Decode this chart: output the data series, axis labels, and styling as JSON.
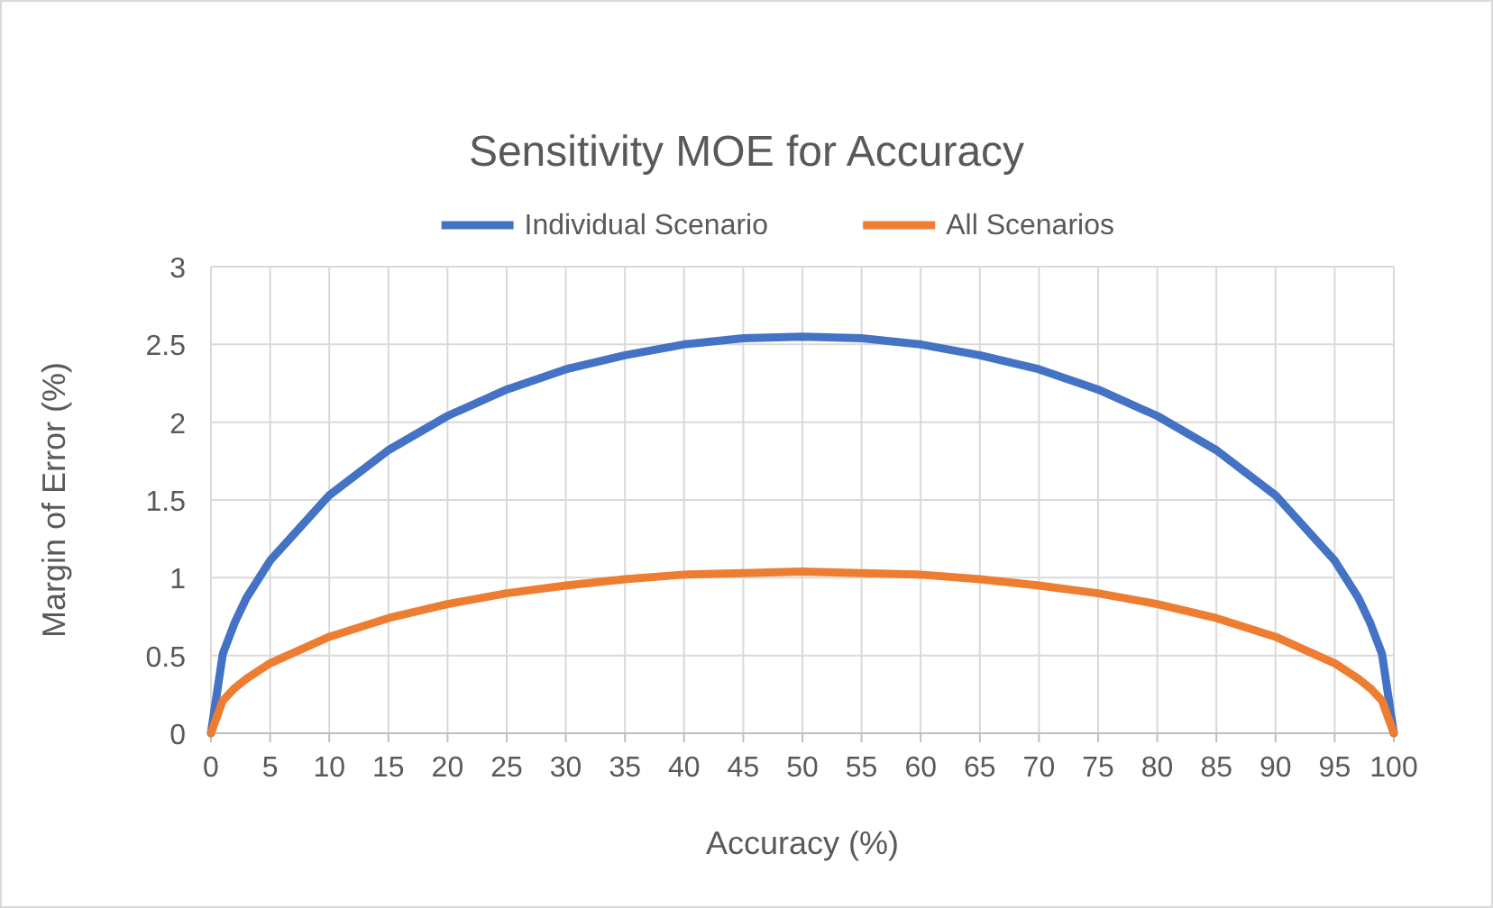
{
  "chart_data": {
    "type": "line",
    "title": "Sensitivity MOE for Accuracy",
    "xlabel": "Accuracy (%)",
    "ylabel": "Margin of Error (%)",
    "x": [
      0,
      1,
      2,
      3,
      5,
      10,
      15,
      20,
      25,
      30,
      35,
      40,
      45,
      50,
      55,
      60,
      65,
      70,
      75,
      80,
      85,
      90,
      95,
      97,
      98,
      99,
      100
    ],
    "series": [
      {
        "name": "Individual Scenario",
        "color": "#4472c4",
        "values": [
          0,
          0.51,
          0.71,
          0.87,
          1.11,
          1.53,
          1.82,
          2.04,
          2.21,
          2.34,
          2.43,
          2.5,
          2.54,
          2.55,
          2.54,
          2.5,
          2.43,
          2.34,
          2.21,
          2.04,
          1.82,
          1.53,
          1.11,
          0.87,
          0.71,
          0.51,
          0
        ]
      },
      {
        "name": "All Scenarios",
        "color": "#ed7d31",
        "values": [
          0,
          0.21,
          0.29,
          0.35,
          0.45,
          0.62,
          0.74,
          0.83,
          0.9,
          0.95,
          0.99,
          1.02,
          1.03,
          1.04,
          1.03,
          1.02,
          0.99,
          0.95,
          0.9,
          0.83,
          0.74,
          0.62,
          0.45,
          0.35,
          0.29,
          0.21,
          0
        ]
      }
    ],
    "xlim": [
      0,
      100
    ],
    "xticks": [
      0,
      5,
      10,
      15,
      20,
      25,
      30,
      35,
      40,
      45,
      50,
      55,
      60,
      65,
      70,
      75,
      80,
      85,
      90,
      95,
      100
    ],
    "ylim": [
      0,
      3
    ],
    "yticks": [
      0,
      0.5,
      1,
      1.5,
      2,
      2.5,
      3
    ],
    "grid": true,
    "legend": "top",
    "marker": "none",
    "line_style": "solid"
  }
}
